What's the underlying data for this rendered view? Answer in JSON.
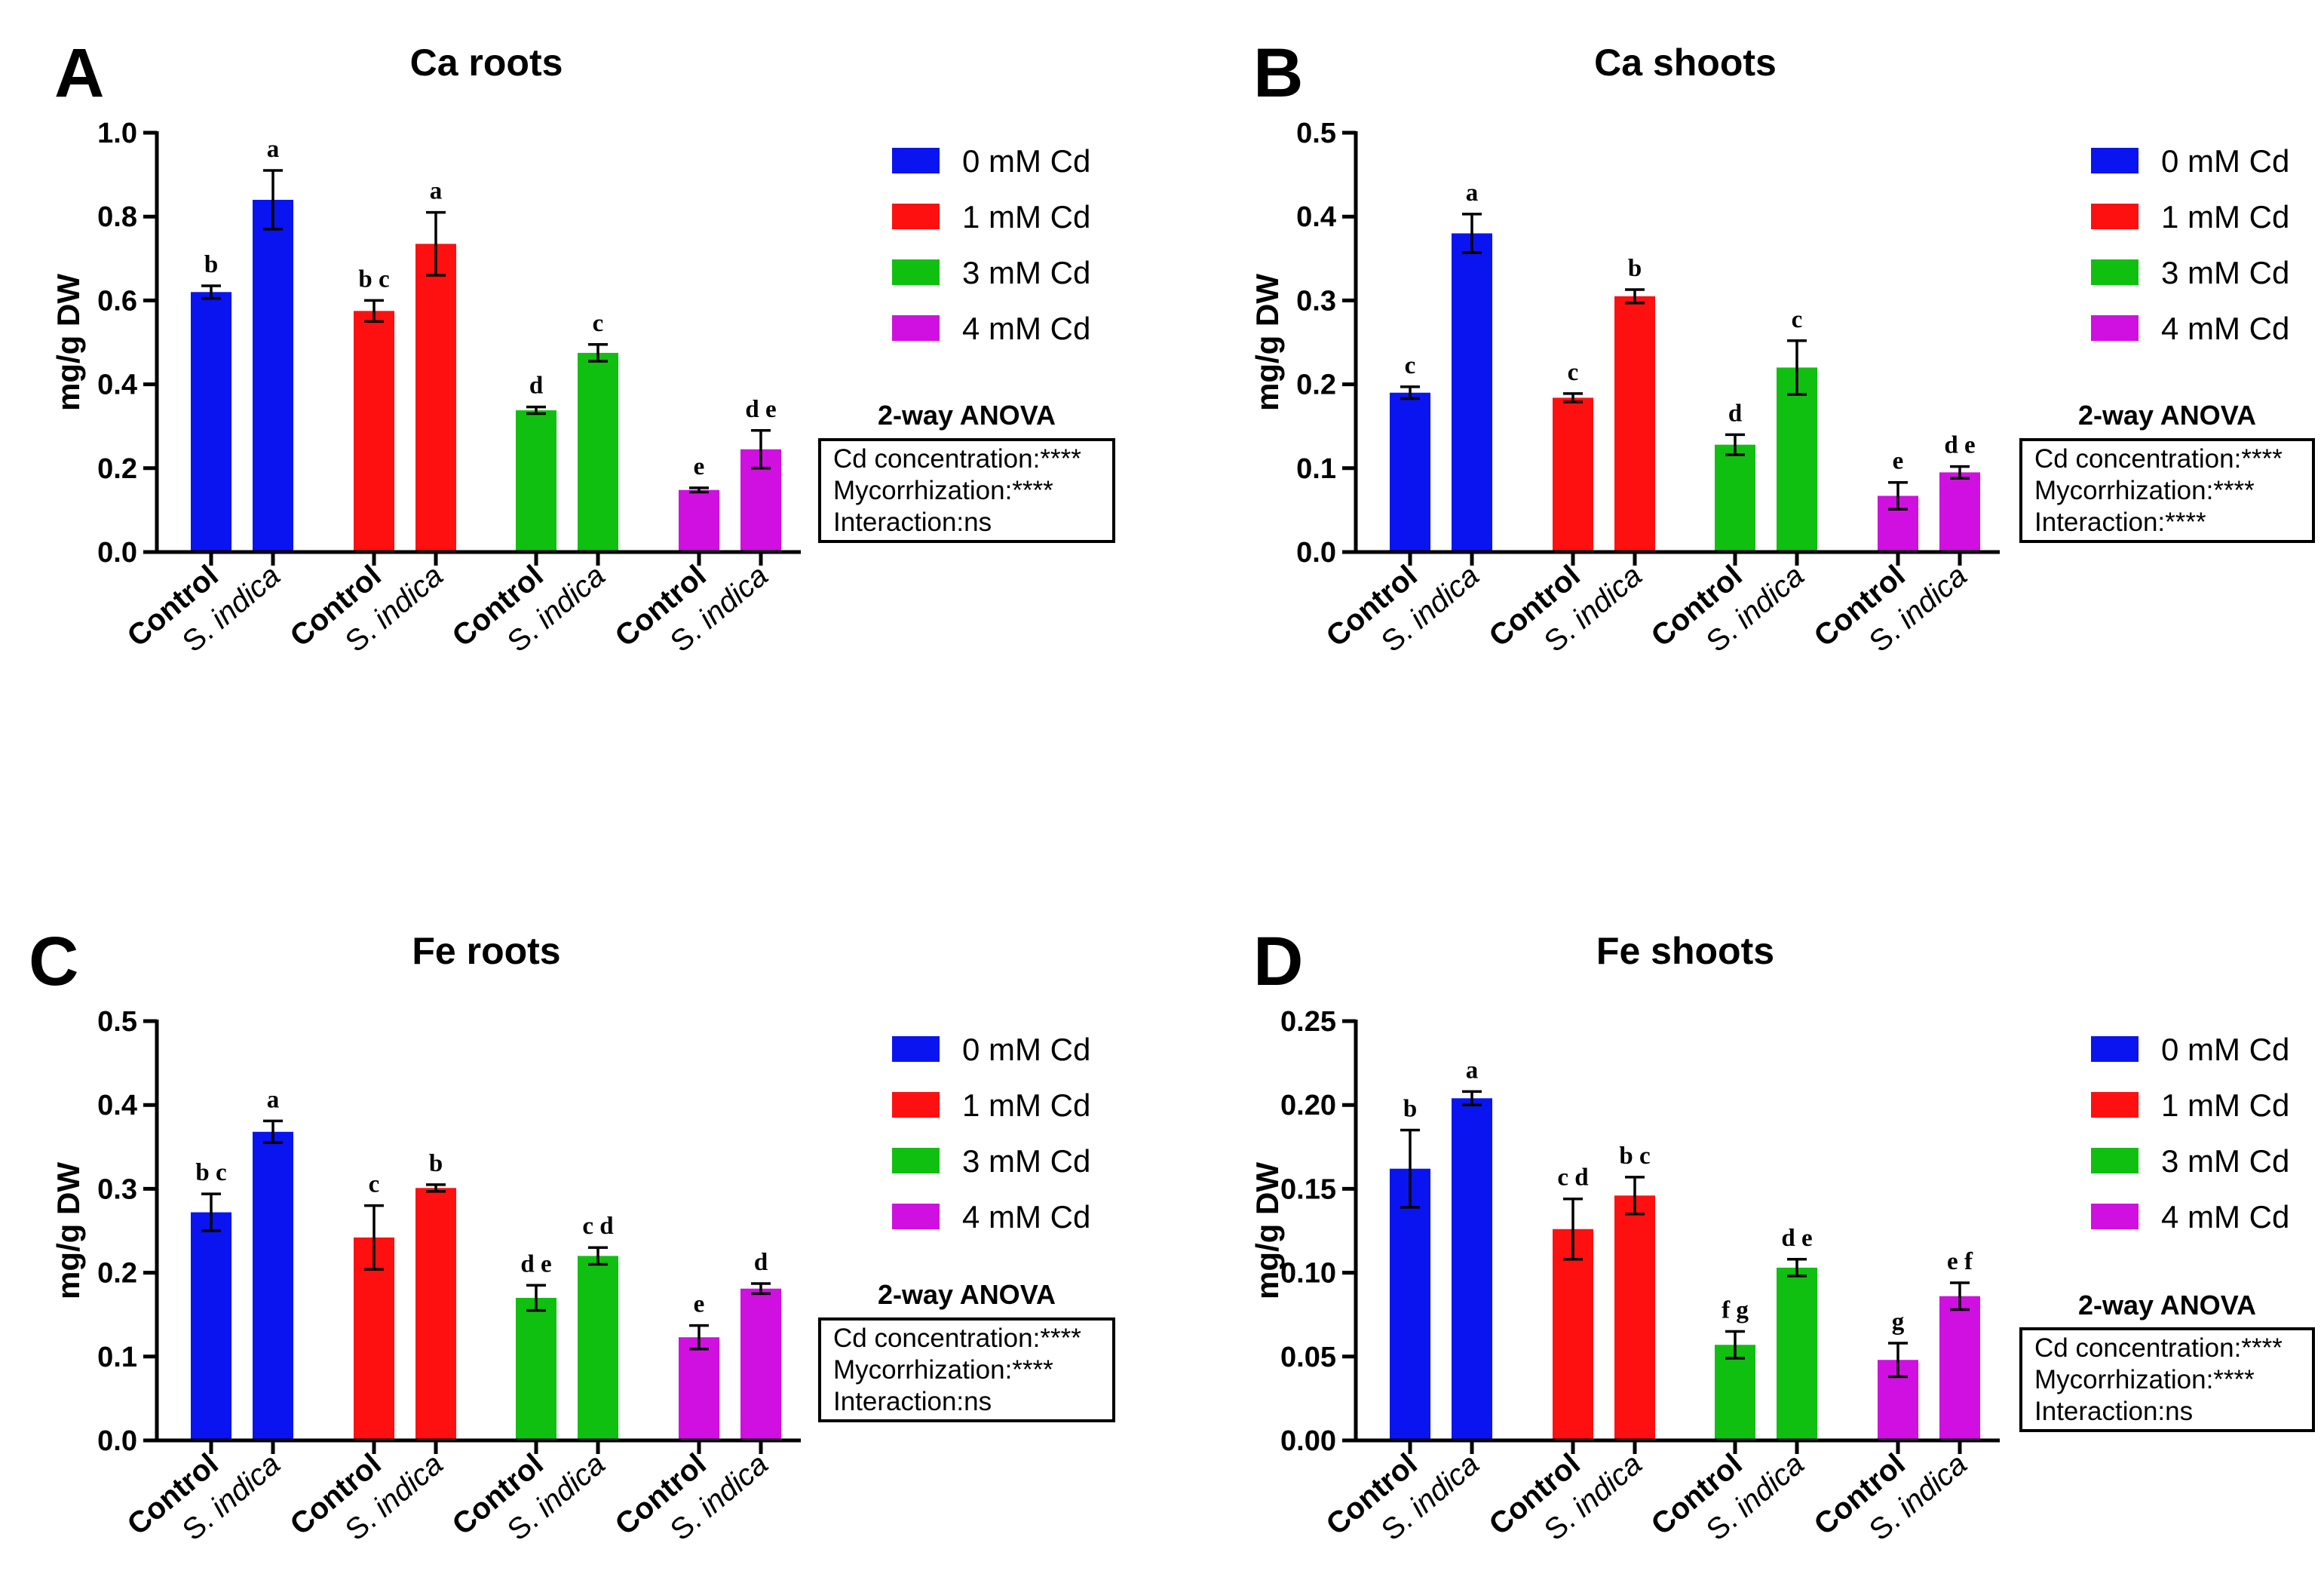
{
  "colors": {
    "0 mM Cd": "#0a14f0",
    "1 mM Cd": "#ff1010",
    "3 mM Cd": "#10c010",
    "4 mM Cd": "#d010e0"
  },
  "legend": {
    "entries": [
      "0 mM Cd",
      "1 mM Cd",
      "3 mM Cd",
      "4 mM Cd"
    ]
  },
  "x_labels": {
    "control": "Control",
    "s_prefix": "S. ",
    "s_italic": "indica"
  },
  "chart_data": [
    {
      "panel": "A",
      "type": "bar",
      "title": "Ca roots",
      "ylabel": "mg/g DW",
      "ylim": [
        0,
        1.0
      ],
      "yticks": [
        "0.0",
        "0.2",
        "0.4",
        "0.6",
        "0.8",
        "1.0"
      ],
      "categories": [
        "Control",
        "S. indica"
      ],
      "series": [
        {
          "name": "0 mM Cd",
          "values": [
            0.62,
            0.84
          ],
          "errors": [
            0.015,
            0.07
          ],
          "letters": [
            "b",
            "a"
          ]
        },
        {
          "name": "1 mM Cd",
          "values": [
            0.575,
            0.735
          ],
          "errors": [
            0.025,
            0.075
          ],
          "letters": [
            "b c",
            "a"
          ]
        },
        {
          "name": "3 mM Cd",
          "values": [
            0.338,
            0.475
          ],
          "errors": [
            0.008,
            0.02
          ],
          "letters": [
            "d",
            "c"
          ]
        },
        {
          "name": "4 mM Cd",
          "values": [
            0.148,
            0.245
          ],
          "errors": [
            0.005,
            0.045
          ],
          "letters": [
            "e",
            "d e"
          ]
        }
      ],
      "anova": {
        "title": "2-way ANOVA",
        "lines": [
          "Cd concentration:****",
          "Mycorrhization:****",
          "Interaction:ns"
        ]
      }
    },
    {
      "panel": "B",
      "type": "bar",
      "title": "Ca shoots",
      "ylabel": "mg/g DW",
      "ylim": [
        0,
        0.5
      ],
      "yticks": [
        "0.0",
        "0.1",
        "0.2",
        "0.3",
        "0.4",
        "0.5"
      ],
      "categories": [
        "Control",
        "S. indica"
      ],
      "series": [
        {
          "name": "0 mM Cd",
          "values": [
            0.19,
            0.38
          ],
          "errors": [
            0.007,
            0.023
          ],
          "letters": [
            "c",
            "a"
          ]
        },
        {
          "name": "1 mM Cd",
          "values": [
            0.184,
            0.305
          ],
          "errors": [
            0.005,
            0.008
          ],
          "letters": [
            "c",
            "b"
          ]
        },
        {
          "name": "3 mM Cd",
          "values": [
            0.128,
            0.22
          ],
          "errors": [
            0.012,
            0.032
          ],
          "letters": [
            "d",
            "c"
          ]
        },
        {
          "name": "4 mM Cd",
          "values": [
            0.067,
            0.095
          ],
          "errors": [
            0.016,
            0.007
          ],
          "letters": [
            "e",
            "d e"
          ]
        }
      ],
      "anova": {
        "title": "2-way ANOVA",
        "lines": [
          "Cd concentration:****",
          "Mycorrhization:****",
          "Interaction:****"
        ]
      }
    },
    {
      "panel": "C",
      "type": "bar",
      "title": "Fe roots",
      "ylabel": "mg/g DW",
      "ylim": [
        0,
        0.5
      ],
      "yticks": [
        "0.0",
        "0.1",
        "0.2",
        "0.3",
        "0.4",
        "0.5"
      ],
      "categories": [
        "Control",
        "S. indica"
      ],
      "series": [
        {
          "name": "0 mM Cd",
          "values": [
            0.272,
            0.368
          ],
          "errors": [
            0.022,
            0.013
          ],
          "letters": [
            "b c",
            "a"
          ]
        },
        {
          "name": "1 mM Cd",
          "values": [
            0.242,
            0.301
          ],
          "errors": [
            0.038,
            0.004
          ],
          "letters": [
            "c",
            "b"
          ]
        },
        {
          "name": "3 mM Cd",
          "values": [
            0.17,
            0.22
          ],
          "errors": [
            0.015,
            0.01
          ],
          "letters": [
            "d e",
            "c d"
          ]
        },
        {
          "name": "4 mM Cd",
          "values": [
            0.123,
            0.181
          ],
          "errors": [
            0.014,
            0.006
          ],
          "letters": [
            "e",
            "d"
          ]
        }
      ],
      "anova": {
        "title": "2-way ANOVA",
        "lines": [
          "Cd concentration:****",
          "Mycorrhization:****",
          "Interaction:ns"
        ]
      }
    },
    {
      "panel": "D",
      "type": "bar",
      "title": "Fe shoots",
      "ylabel": "mg/g DW",
      "ylim": [
        0,
        0.25
      ],
      "yticks": [
        "0.00",
        "0.05",
        "0.10",
        "0.15",
        "0.20",
        "0.25"
      ],
      "categories": [
        "Control",
        "S. indica"
      ],
      "series": [
        {
          "name": "0 mM Cd",
          "values": [
            0.162,
            0.204
          ],
          "errors": [
            0.023,
            0.004
          ],
          "letters": [
            "b",
            "a"
          ]
        },
        {
          "name": "1 mM Cd",
          "values": [
            0.126,
            0.146
          ],
          "errors": [
            0.018,
            0.011
          ],
          "letters": [
            "c d",
            "b c"
          ]
        },
        {
          "name": "3 mM Cd",
          "values": [
            0.057,
            0.103
          ],
          "errors": [
            0.008,
            0.005
          ],
          "letters": [
            "f g",
            "d e"
          ]
        },
        {
          "name": "4 mM Cd",
          "values": [
            0.048,
            0.086
          ],
          "errors": [
            0.01,
            0.008
          ],
          "letters": [
            "g",
            "e f"
          ]
        }
      ],
      "anova": {
        "title": "2-way ANOVA",
        "lines": [
          "Cd concentration:****",
          "Mycorrhization:****",
          "Interaction:ns"
        ]
      }
    }
  ]
}
